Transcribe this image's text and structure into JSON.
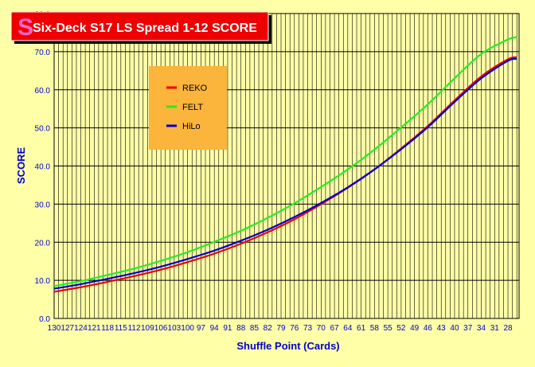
{
  "chart_data": {
    "type": "line",
    "title": "Six-Deck S17 LS Spread 1-12 SCORE",
    "xlabel": "Shuffle Point (Cards)",
    "ylabel": "SCORE",
    "ylim": [
      0,
      80
    ],
    "yticks": [
      "0.0",
      "10.0",
      "20.0",
      "30.0",
      "40.0",
      "50.0",
      "60.0",
      "70.0",
      "80.0"
    ],
    "x_tick_labels": [
      "130",
      "127",
      "124",
      "121",
      "118",
      "115",
      "112",
      "109",
      "106",
      "103",
      "100",
      "97",
      "94",
      "91",
      "88",
      "85",
      "82",
      "79",
      "76",
      "73",
      "70",
      "67",
      "64",
      "61",
      "58",
      "55",
      "52",
      "49",
      "46",
      "43",
      "40",
      "37",
      "34",
      "31",
      "28"
    ],
    "grid": true,
    "legend_position": "upper-left",
    "colors": {
      "background": "#ffffa8",
      "title_bg": "#ee0000",
      "legend_bg": "#fbb43c"
    },
    "series": [
      {
        "name": "REKO",
        "color": "#ee0000",
        "x": [
          130,
          124,
          118,
          112,
          106,
          100,
          94,
          88,
          82,
          76,
          70,
          64,
          58,
          52,
          46,
          40,
          34,
          28,
          26
        ],
        "y": [
          7.0,
          8.2,
          9.6,
          11.1,
          12.8,
          14.8,
          17.0,
          19.6,
          22.6,
          26.0,
          30.0,
          34.3,
          39.1,
          44.6,
          50.5,
          57.2,
          63.5,
          68.0,
          68.5
        ]
      },
      {
        "name": "FELT",
        "color": "#22ee22",
        "x": [
          130,
          124,
          118,
          112,
          106,
          100,
          94,
          88,
          82,
          76,
          70,
          64,
          58,
          52,
          46,
          40,
          34,
          28,
          26
        ],
        "y": [
          8.5,
          9.8,
          11.4,
          13.1,
          15.1,
          17.4,
          20.1,
          23.0,
          26.4,
          30.2,
          34.5,
          39.1,
          44.3,
          50.1,
          56.2,
          63.0,
          69.4,
          73.2,
          73.8
        ]
      },
      {
        "name": "HiLo",
        "color": "#0000cc",
        "x": [
          130,
          124,
          118,
          112,
          106,
          100,
          94,
          88,
          82,
          76,
          70,
          64,
          58,
          52,
          46,
          40,
          34,
          28,
          26
        ],
        "y": [
          7.8,
          9.0,
          10.4,
          11.9,
          13.6,
          15.6,
          17.8,
          20.4,
          23.3,
          26.6,
          30.3,
          34.4,
          39.1,
          44.4,
          50.2,
          56.8,
          63.0,
          67.6,
          68.1
        ]
      }
    ]
  }
}
